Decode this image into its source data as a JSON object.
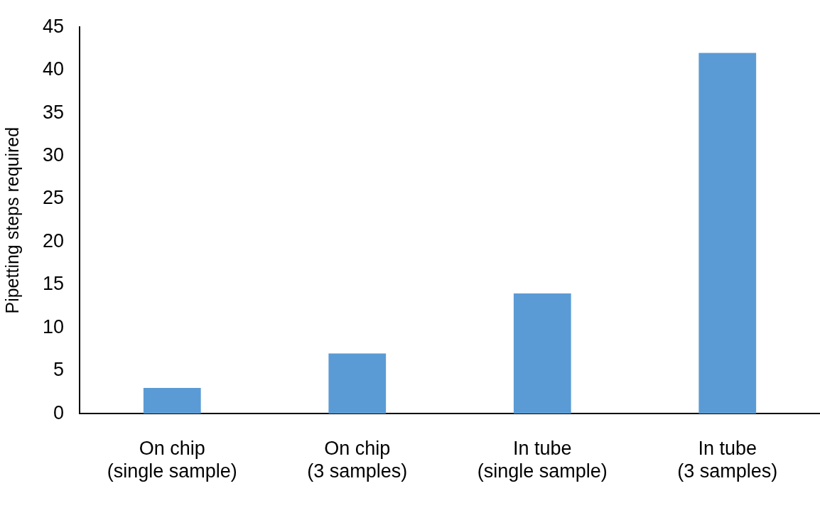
{
  "chart_data": {
    "type": "bar",
    "ylabel": "Pipetting steps required",
    "categories": [
      "On chip (single sample)",
      "On chip (3 samples)",
      "In tube (single sample)",
      "In tube (3 samples)"
    ],
    "values": [
      3,
      7,
      14,
      42
    ],
    "color": "#5b9bd5",
    "ylim": [
      0,
      45
    ],
    "yticks": [
      0,
      5,
      10,
      15,
      20,
      25,
      30,
      35,
      40,
      45
    ],
    "grid": false
  }
}
